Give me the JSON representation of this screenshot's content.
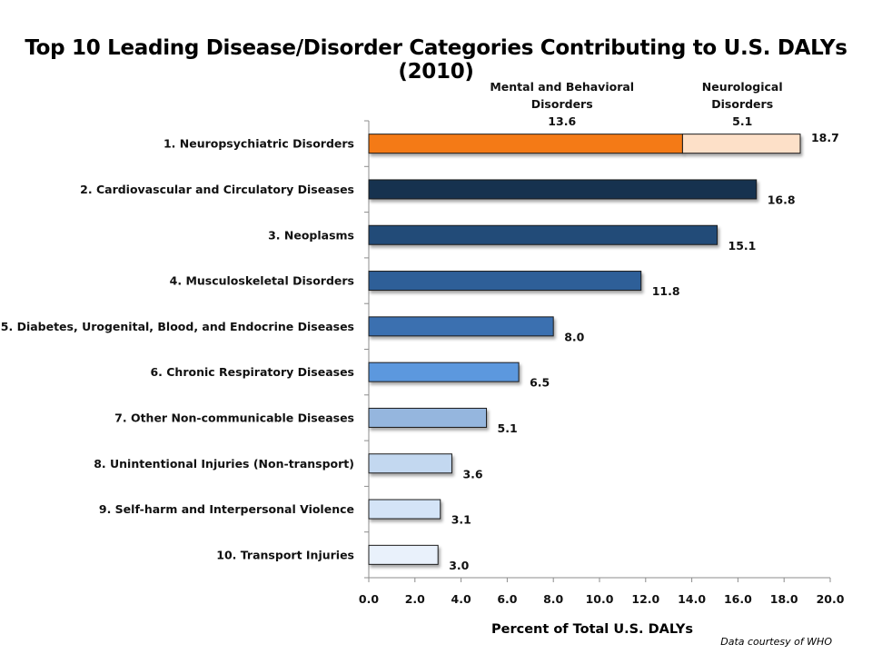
{
  "chart_data": {
    "type": "bar",
    "orientation": "horizontal",
    "title": "Top 10 Leading Disease/Disorder Categories Contributing to U.S. DALYs (2010)",
    "xlabel": "Percent of Total U.S. DALYs",
    "xlim": [
      0,
      20
    ],
    "xticks": [
      "0.0",
      "2.0",
      "4.0",
      "6.0",
      "8.0",
      "10.0",
      "12.0",
      "14.0",
      "16.0",
      "18.0",
      "20.0"
    ],
    "grid": false,
    "categories": [
      "1.  Neuropsychiatric Disorders",
      "2.  Cardiovascular and Circulatory Diseases",
      "3.  Neoplasms",
      "4.  Musculoskeletal Disorders",
      "5.  Diabetes, Urogenital, Blood, and Endocrine Diseases",
      "6.  Chronic Respiratory Diseases",
      "7.  Other Non-communicable Diseases",
      "8.  Unintentional Injuries (Non-transport)",
      "9.  Self-harm and Interpersonal Violence",
      "10.  Transport Injuries"
    ],
    "values": [
      18.7,
      16.8,
      15.1,
      11.8,
      8.0,
      6.5,
      5.1,
      3.6,
      3.1,
      3.0
    ],
    "value_labels": [
      "18.7",
      "16.8",
      "15.1",
      "11.8",
      "8.0",
      "6.5",
      "5.1",
      "3.6",
      "3.1",
      "3.0"
    ],
    "bar_colors": [
      "#f47a14",
      "#17304f",
      "#244b78",
      "#2e5f98",
      "#3b70b0",
      "#5b98de",
      "#95b6de",
      "#c3d8f0",
      "#d4e4f7",
      "#e9f1fb"
    ],
    "stacked_first_bar": {
      "segments": [
        {
          "label_lines": [
            "Mental and Behavioral",
            "Disorders",
            "13.6"
          ],
          "value": 13.6,
          "color": "#f47a14"
        },
        {
          "label_lines": [
            "Neurological",
            "Disorders",
            "5.1"
          ],
          "value": 5.1,
          "color": "#fde0c8"
        }
      ]
    }
  },
  "source_note": "Data courtesy  of WHO"
}
